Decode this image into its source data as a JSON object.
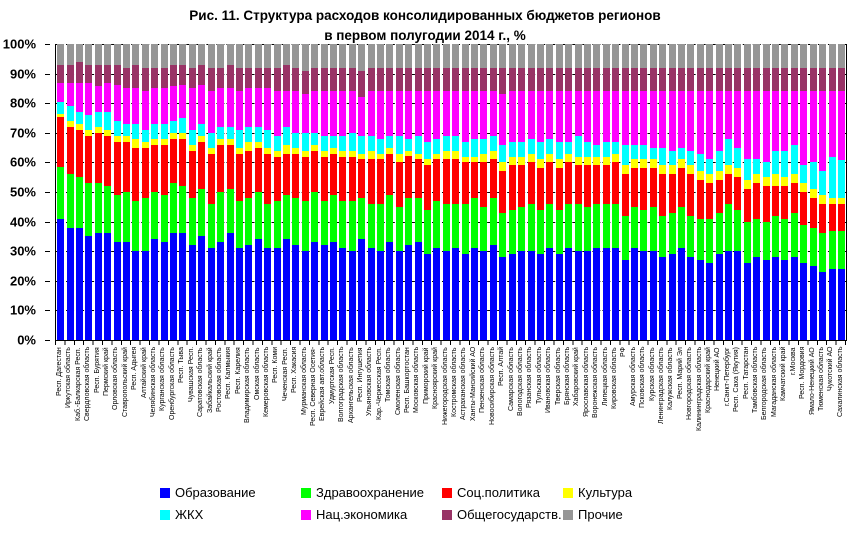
{
  "title": {
    "line1": "Рис. 11. Структура расходов консолидированных бюджетов регионов",
    "line2": "в первом полугодии 2014 г., %"
  },
  "axis": {
    "yticks": [
      "100%",
      "90%",
      "80%",
      "70%",
      "60%",
      "50%",
      "40%",
      "30%",
      "20%",
      "10%",
      "0%"
    ]
  },
  "chart_data": {
    "type": "bar",
    "stacked": true,
    "normalized_to_100": true,
    "title": "Рис. 11. Структура расходов консолидированных бюджетов регионов в первом полугодии 2014 г., %",
    "ylim": [
      0,
      100
    ],
    "grid": "dashed horizontal every 10%",
    "legend_position": "bottom",
    "categories": [
      "Респ. Дагестан",
      "Иркутская область",
      "Каб.-Балкарская Респ.",
      "Свердловская область",
      "Респ. Бурятия",
      "Пермский край",
      "Орловская область",
      "Ставропольский край",
      "Респ. Адыгея",
      "Алтайский край",
      "Челябинская область",
      "Курганская область",
      "Оренбургская область",
      "Респ. Тыва",
      "Чувашская Респ.",
      "Саратовская область",
      "Забайкальский край",
      "Ростовская область",
      "Респ. Калмыкия",
      "Респ. Карелия",
      "Владимирская область",
      "Омская область",
      "Кемеровская область",
      "Респ. Коми",
      "Чеченская Респ.",
      "Респ. Хакасия",
      "Мурманская область",
      "Респ. Северная Осетия-",
      "Еврейская авт.область",
      "Удмуртская Респ.",
      "Волгоградская область",
      "Архангельская область",
      "Респ. Ингушетия",
      "Ульяновская область",
      "Кар.-Черкесская Респ.",
      "Томская область",
      "Смоленская область",
      "Респ. Башкортостан",
      "Московская область",
      "Приморский край",
      "Красноярский край",
      "Нижегородская область",
      "Костромская область",
      "Астраханская область",
      "Ханты-Мансийский АО",
      "Пензенская область",
      "Новосибирская область",
      "Респ. Алтай",
      "Самарская область",
      "Вологодская область",
      "Рязанская область",
      "Тульская область",
      "Ивановская область",
      "Тверская область",
      "Брянская область",
      "Хабаровский край",
      "Ярославская область",
      "Воронежская область",
      "Липецкая область",
      "Кировская область",
      "РФ",
      "Амурская область",
      "Псковская область",
      "Курская область",
      "Ленинградская область",
      "Калужская область",
      "Респ. Марий Эл",
      "Новгородская область",
      "Калининградская область",
      "Краснодарский край",
      "Ненецкий АО",
      "г.Санкт-Петербург",
      "Респ. Саха (Якутия)",
      "Респ. Татарстан",
      "Тамбовская область",
      "Белгородская область",
      "Магаданская область",
      "Камчатский край",
      "г.Москва",
      "Респ. Мордовия",
      "Ямало-Ненецкий АО",
      "Тюменская область",
      "Чукотский АО",
      "Сахалинская область"
    ],
    "series": [
      {
        "name": "Образование",
        "color": "#0000FF",
        "values": [
          41,
          38,
          38,
          35,
          36,
          36,
          33,
          33,
          30,
          30,
          34,
          33,
          36,
          36,
          32,
          35,
          31,
          33,
          36,
          31,
          32,
          34,
          31,
          31,
          34,
          32,
          30,
          33,
          32,
          33,
          31,
          30,
          34,
          31,
          30,
          33,
          30,
          32,
          33,
          29,
          31,
          30,
          31,
          29,
          31,
          30,
          32,
          28,
          29,
          30,
          30,
          29,
          31,
          29,
          31,
          30,
          30,
          31,
          31,
          31,
          27,
          31,
          30,
          30,
          28,
          29,
          31,
          28,
          27,
          26,
          29,
          30,
          30,
          26,
          28,
          27,
          28,
          27,
          28,
          26,
          25,
          23,
          24,
          24
        ]
      },
      {
        "name": "Здравоохранение",
        "color": "#00FF00",
        "values": [
          17.5,
          18,
          17,
          18,
          17,
          16,
          16,
          17,
          17,
          18,
          16,
          16,
          17,
          16,
          16,
          16,
          15,
          17,
          15,
          16,
          16,
          16,
          15,
          16,
          15,
          16,
          17,
          17,
          15,
          16,
          16,
          17,
          14,
          15,
          16,
          16,
          15,
          16,
          15,
          15,
          16,
          16,
          15,
          17,
          17,
          15,
          16,
          15,
          15,
          15,
          16,
          15,
          15,
          15,
          15,
          16,
          15,
          15,
          15,
          15,
          15,
          14,
          14,
          15,
          14,
          14,
          14,
          14,
          14,
          15,
          14,
          16,
          14,
          14,
          13,
          13,
          14,
          14,
          15,
          13,
          13,
          13,
          13,
          13
        ]
      },
      {
        "name": "Соц.политика",
        "color": "#FF0000",
        "values": [
          17,
          16,
          16,
          16,
          17,
          17,
          18,
          17,
          18,
          17,
          16,
          17,
          15,
          16,
          16,
          16,
          17,
          16,
          15,
          16,
          16,
          15,
          17,
          15,
          14,
          15,
          15,
          14,
          15,
          14,
          15,
          15,
          13,
          15,
          15,
          14,
          15,
          14,
          13,
          15,
          14,
          15,
          15,
          14,
          12,
          15,
          13,
          14,
          15,
          14,
          14,
          14,
          14,
          14,
          14,
          13,
          14,
          13,
          13,
          14,
          14,
          13,
          14,
          13,
          14,
          13,
          13,
          14,
          13,
          12,
          11,
          10,
          11,
          11,
          12,
          12,
          10,
          11,
          10,
          11,
          10,
          10,
          9,
          9
        ]
      },
      {
        "name": "Культура",
        "color": "#FFFF00",
        "values": [
          1,
          2,
          2,
          2,
          2,
          2,
          2,
          2,
          3,
          2,
          2,
          2,
          2,
          2,
          2,
          2,
          2,
          2,
          2,
          2,
          3,
          2,
          2,
          2,
          3,
          2,
          2,
          2,
          2,
          2,
          2,
          2,
          2,
          3,
          2,
          2,
          3,
          2,
          2,
          2,
          2,
          3,
          3,
          2,
          2,
          3,
          3,
          3,
          3,
          3,
          3,
          3,
          3,
          3,
          3,
          3,
          3,
          3,
          3,
          3,
          3,
          3,
          3,
          3,
          3,
          3,
          3,
          3,
          3,
          3,
          3,
          3,
          3,
          3,
          3,
          3,
          4,
          3,
          3,
          3,
          3,
          3,
          2,
          2
        ]
      },
      {
        "name": "ЖКХ",
        "color": "#00FFFF",
        "values": [
          4,
          5,
          4,
          5,
          5,
          6,
          5,
          4,
          5,
          4,
          5,
          5,
          4,
          5,
          5,
          4,
          5,
          4,
          4,
          6,
          5,
          5,
          6,
          5,
          6,
          5,
          6,
          4,
          5,
          4,
          5,
          6,
          6,
          5,
          5,
          4,
          6,
          4,
          6,
          6,
          5,
          5,
          5,
          5,
          6,
          5,
          5,
          6,
          5,
          5,
          5,
          6,
          5,
          6,
          4,
          7,
          5,
          4,
          5,
          4,
          7,
          5,
          5,
          4,
          6,
          5,
          4,
          5,
          6,
          5,
          7,
          9,
          7,
          7,
          5,
          5,
          8,
          9,
          10,
          6,
          9,
          8,
          14,
          13
        ]
      },
      {
        "name": "Нац.экономика",
        "color": "#FF00FF",
        "values": [
          6.5,
          8,
          10,
          11,
          9,
          10,
          12,
          12,
          12,
          13,
          12,
          12,
          12,
          11,
          14,
          13,
          14,
          13,
          13,
          13,
          13,
          13,
          14,
          15,
          12,
          14,
          13,
          14,
          15,
          15,
          15,
          14,
          13,
          15,
          16,
          15,
          15,
          16,
          15,
          17,
          16,
          15,
          15,
          17,
          16,
          16,
          15,
          17,
          17,
          17,
          16,
          17,
          16,
          17,
          17,
          15,
          17,
          18,
          17,
          17,
          18,
          18,
          18,
          19,
          19,
          20,
          19,
          20,
          21,
          23,
          20,
          16,
          19,
          23,
          23,
          24,
          20,
          20,
          18,
          25,
          24,
          27,
          22,
          23
        ]
      },
      {
        "name": "Общегосударств.",
        "color": "#993366",
        "values": [
          6,
          6,
          7,
          6,
          7,
          6,
          7,
          7,
          8,
          8,
          7,
          7,
          7,
          7,
          7,
          7,
          8,
          7,
          8,
          8,
          7,
          7,
          7,
          8,
          9,
          8,
          8,
          8,
          8,
          8,
          8,
          8,
          9,
          8,
          8,
          8,
          8,
          8,
          8,
          8,
          8,
          8,
          8,
          8,
          8,
          8,
          8,
          9,
          8,
          8,
          8,
          8,
          8,
          8,
          8,
          8,
          8,
          8,
          8,
          8,
          8,
          8,
          8,
          8,
          8,
          8,
          8,
          8,
          8,
          8,
          8,
          8,
          8,
          8,
          8,
          8,
          8,
          8,
          8,
          8,
          8,
          8,
          8,
          8
        ]
      },
      {
        "name": "Прочие",
        "color": "#969696",
        "values": [
          7,
          7,
          6,
          7,
          7,
          7,
          7,
          8,
          7,
          8,
          8,
          8,
          7,
          7,
          8,
          7,
          8,
          8,
          7,
          8,
          8,
          8,
          8,
          8,
          7,
          8,
          9,
          8,
          8,
          8,
          8,
          8,
          9,
          8,
          8,
          8,
          8,
          8,
          8,
          8,
          8,
          8,
          8,
          8,
          8,
          8,
          8,
          8,
          8,
          8,
          8,
          8,
          8,
          8,
          8,
          8,
          8,
          8,
          8,
          8,
          8,
          8,
          8,
          8,
          8,
          8,
          8,
          8,
          8,
          8,
          8,
          8,
          8,
          8,
          8,
          8,
          8,
          8,
          8,
          8,
          8,
          8,
          8,
          8
        ]
      }
    ]
  }
}
